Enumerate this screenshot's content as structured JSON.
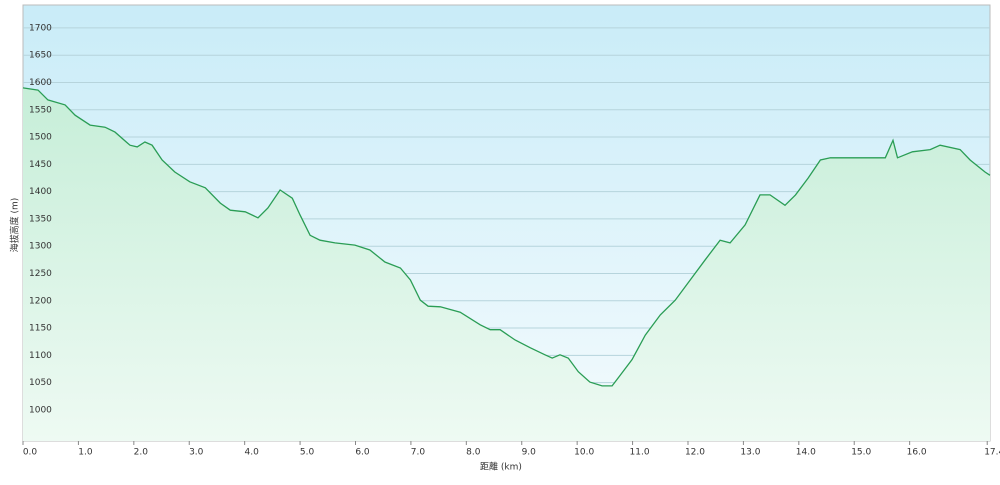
{
  "chart_data": {
    "type": "line",
    "x_label": "距離 (km)",
    "y_label": "海拔高度 (m)",
    "x": [
      0,
      0.27,
      0.45,
      0.76,
      0.94,
      1.21,
      1.48,
      1.66,
      1.93,
      2.06,
      2.2,
      2.33,
      2.51,
      2.74,
      3.01,
      3.29,
      3.56,
      3.74,
      4.01,
      4.24,
      4.42,
      4.64,
      4.86,
      5.0,
      5.18,
      5.36,
      5.63,
      5.99,
      6.26,
      6.53,
      6.81,
      6.99,
      7.17,
      7.31,
      7.53,
      7.89,
      8.25,
      8.43,
      8.61,
      8.88,
      9.15,
      9.42,
      9.55,
      9.69,
      9.84,
      10.02,
      10.23,
      10.45,
      10.63,
      10.78,
      10.99,
      11.23,
      11.5,
      11.77,
      12.04,
      12.31,
      12.58,
      12.76,
      13.03,
      13.3,
      13.48,
      13.75,
      13.94,
      14.17,
      14.39,
      14.57,
      14.93,
      15.29,
      15.56,
      15.7,
      15.78,
      16.05,
      16.37,
      16.55,
      16.91,
      17.09,
      17.36,
      17.45
    ],
    "series": [
      {
        "name": "elevation",
        "color": "#2a9d55",
        "values": [
          1590,
          1586,
          1568,
          1559,
          1540,
          1522,
          1518,
          1509,
          1485,
          1482,
          1491,
          1485,
          1458,
          1436,
          1418,
          1407,
          1379,
          1366,
          1363,
          1352,
          1370,
          1403,
          1388,
          1357,
          1320,
          1311,
          1306,
          1302,
          1293,
          1271,
          1260,
          1238,
          1201,
          1190,
          1189,
          1179,
          1156,
          1147,
          1147,
          1128,
          1114,
          1101,
          1095,
          1101,
          1095,
          1070,
          1051,
          1044,
          1044,
          1064,
          1092,
          1137,
          1174,
          1201,
          1238,
          1275,
          1311,
          1306,
          1339,
          1394,
          1394,
          1375,
          1394,
          1425,
          1458,
          1462,
          1462,
          1462,
          1462,
          1494,
          1462,
          1473,
          1477,
          1485,
          1477,
          1458,
          1436,
          1430
        ]
      }
    ],
    "xlim": [
      0,
      17.45
    ],
    "ylim": [
      943,
      1742
    ],
    "xticks": [
      {
        "value": 0,
        "label": "0.0"
      },
      {
        "value": 1,
        "label": "1.0"
      },
      {
        "value": 2,
        "label": "2.0"
      },
      {
        "value": 3,
        "label": "3.0"
      },
      {
        "value": 4,
        "label": "4.0"
      },
      {
        "value": 5,
        "label": "5.0"
      },
      {
        "value": 6,
        "label": "6.0"
      },
      {
        "value": 7,
        "label": "7.0"
      },
      {
        "value": 8,
        "label": "8.0"
      },
      {
        "value": 9,
        "label": "9.0"
      },
      {
        "value": 10,
        "label": "10.0"
      },
      {
        "value": 11,
        "label": "11.0"
      },
      {
        "value": 12,
        "label": "12.0"
      },
      {
        "value": 13,
        "label": "13.0"
      },
      {
        "value": 14,
        "label": "14.0"
      },
      {
        "value": 15,
        "label": "15.0"
      },
      {
        "value": 16,
        "label": "16.0"
      },
      17.4
    ],
    "yticks": [
      1000,
      1050,
      1100,
      1150,
      1200,
      1250,
      1300,
      1350,
      1400,
      1450,
      1500,
      1550,
      1600,
      1650,
      1700
    ],
    "grid": true
  }
}
